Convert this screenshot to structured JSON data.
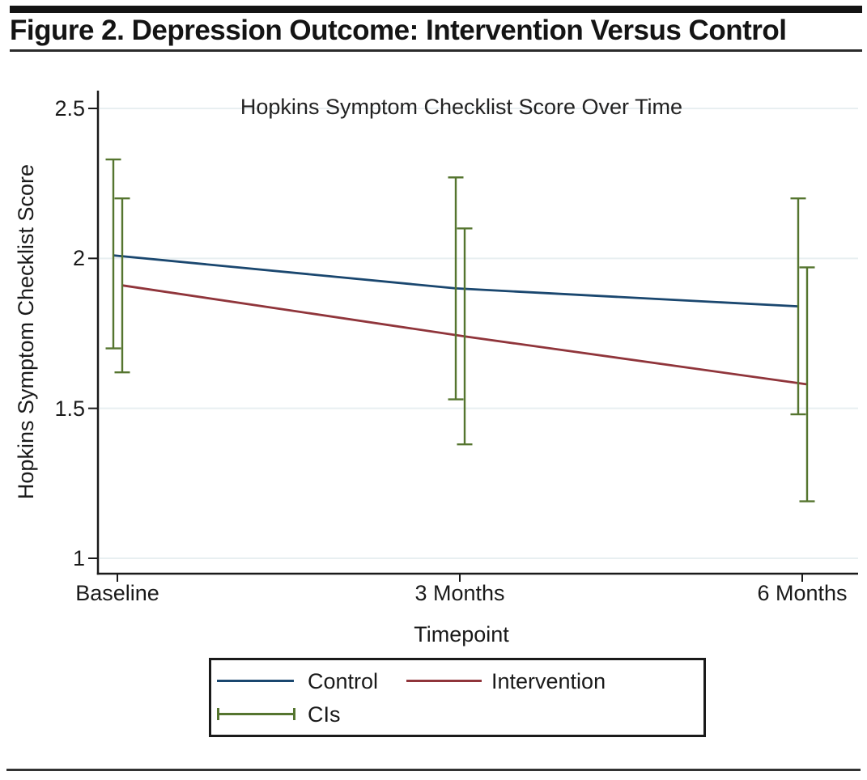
{
  "figure": {
    "title": "Figure 2. Depression Outcome: Intervention Versus Control"
  },
  "chart_data": {
    "type": "line",
    "title": "Hopkins Symptom Checklist Score Over Time",
    "xlabel": "Timepoint",
    "ylabel": "Hopkins Symptom Checklist Score",
    "categories": [
      "Baseline",
      "3 Months",
      "6 Months"
    ],
    "y_ticks": [
      "2.5",
      "2",
      "1.5",
      "1"
    ],
    "y_tick_values": [
      2.5,
      2.0,
      1.5,
      1.0
    ],
    "ylim": [
      0.95,
      2.55
    ],
    "grid": "horizontal",
    "legend_position": "bottom-outside",
    "series": [
      {
        "name": "Control",
        "color": "#1a476f",
        "values": [
          2.01,
          1.9,
          1.84
        ],
        "ci_low": [
          1.7,
          1.53,
          1.48
        ],
        "ci_high": [
          2.33,
          2.27,
          2.2
        ]
      },
      {
        "name": "Intervention",
        "color": "#90353b",
        "values": [
          1.91,
          1.74,
          1.58
        ],
        "ci_low": [
          1.62,
          1.38,
          1.19
        ],
        "ci_high": [
          2.2,
          2.1,
          1.97
        ]
      }
    ],
    "ci_label": "CIs",
    "ci_color": "#55752f",
    "axis_color": "#1a1a1a",
    "gridline_color": "#e8eff1"
  }
}
